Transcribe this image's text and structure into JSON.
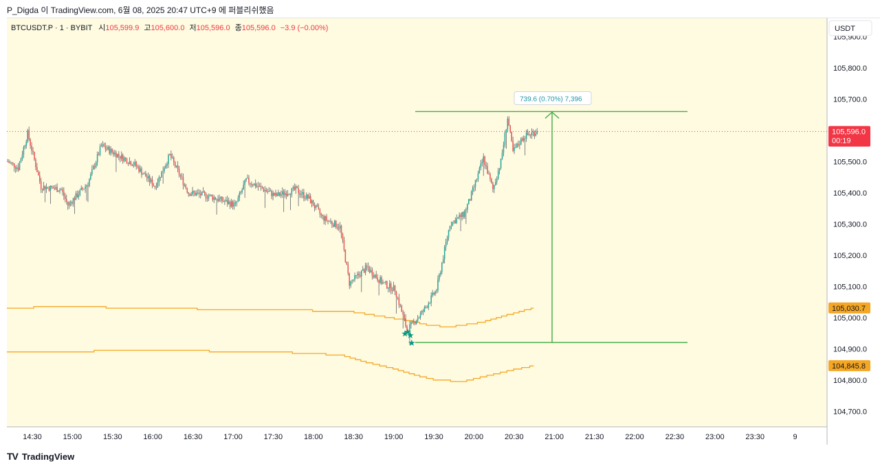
{
  "header": {
    "caption": "P_Digda 이 TradingView.com, 6월 08, 2025 20:47 UTC+9 에 퍼블리쉬했음"
  },
  "legend": {
    "symbol": "BTCUSDT.P · 1 · BYBIT",
    "open_label": "시",
    "open": "105,599.9",
    "high_label": "고",
    "high": "105,600.0",
    "low_label": "저",
    "low": "105,596.0",
    "close_label": "종",
    "close": "105,596.0",
    "change": "−3.9 (−0.00%)"
  },
  "price_axis": {
    "currency": "USDT",
    "last_price": "105,596.0",
    "countdown": "00:19",
    "upper_band_value": "105,030.7",
    "lower_band_value": "104,845.8"
  },
  "measure": {
    "label": "739.6 (0.70%) 7,396"
  },
  "brand": {
    "name": "TradingView",
    "logo": "TV"
  },
  "colors": {
    "background": "#fefbe1",
    "up": "#26a69a",
    "down": "#ef5350",
    "band": "#f5a623",
    "measure": "#4caf50",
    "last_price": "#f23645"
  },
  "chart_data": {
    "type": "candlestick",
    "title": "",
    "symbol": "BTCUSDT.P",
    "interval": "1",
    "exchange": "BYBIT",
    "ylim": [
      104650,
      105960
    ],
    "y_ticks": [
      "105,900.0",
      "105,800.0",
      "105,700.0",
      "105,600.0",
      "105,500.0",
      "105,400.0",
      "105,300.0",
      "105,200.0",
      "105,100.0",
      "105,000.0",
      "104,900.0",
      "104,800.0",
      "104,700.0"
    ],
    "x_ticks": [
      "14:30",
      "15:00",
      "15:30",
      "16:00",
      "16:30",
      "17:00",
      "17:30",
      "18:00",
      "18:30",
      "19:00",
      "19:30",
      "20:00",
      "20:30",
      "21:00",
      "21:30",
      "22:00",
      "22:30",
      "23:00",
      "23:30",
      "9"
    ],
    "last_price": 105596.0,
    "price_anchors": [
      [
        0,
        105500
      ],
      [
        8,
        105480
      ],
      [
        15,
        105590
      ],
      [
        25,
        105420
      ],
      [
        40,
        105410
      ],
      [
        45,
        105360
      ],
      [
        60,
        105430
      ],
      [
        70,
        105550
      ],
      [
        95,
        105490
      ],
      [
        110,
        105420
      ],
      [
        121,
        105520
      ],
      [
        135,
        105400
      ],
      [
        150,
        105390
      ],
      [
        170,
        105360
      ],
      [
        178,
        105440
      ],
      [
        200,
        105390
      ],
      [
        215,
        105410
      ],
      [
        225,
        105380
      ],
      [
        235,
        105320
      ],
      [
        248,
        105290
      ],
      [
        255,
        105110
      ],
      [
        268,
        105160
      ],
      [
        280,
        105110
      ],
      [
        289,
        105090
      ],
      [
        296,
        104990
      ],
      [
        298,
        104960
      ],
      [
        310,
        105020
      ],
      [
        320,
        105090
      ],
      [
        330,
        105300
      ],
      [
        340,
        105330
      ],
      [
        345,
        105380
      ],
      [
        355,
        105510
      ],
      [
        362,
        105410
      ],
      [
        368,
        105500
      ],
      [
        373,
        105640
      ],
      [
        377,
        105530
      ],
      [
        385,
        105580
      ],
      [
        395,
        105596
      ]
    ],
    "upper_band": [
      [
        0,
        105030
      ],
      [
        40,
        105035
      ],
      [
        80,
        105032
      ],
      [
        130,
        105028
      ],
      [
        200,
        105025
      ],
      [
        255,
        105020
      ],
      [
        285,
        105000
      ],
      [
        300,
        104990
      ],
      [
        315,
        104975
      ],
      [
        330,
        104970
      ],
      [
        355,
        104985
      ],
      [
        375,
        105010
      ],
      [
        393,
        105030.7
      ]
    ],
    "lower_band": [
      [
        0,
        104890
      ],
      [
        60,
        104892
      ],
      [
        90,
        104895
      ],
      [
        140,
        104893
      ],
      [
        200,
        104890
      ],
      [
        250,
        104880
      ],
      [
        265,
        104860
      ],
      [
        290,
        104835
      ],
      [
        305,
        104815
      ],
      [
        320,
        104800
      ],
      [
        340,
        104795
      ],
      [
        355,
        104810
      ],
      [
        375,
        104830
      ],
      [
        393,
        104845.8
      ]
    ],
    "marks": [
      {
        "bar": 296,
        "price": 104950,
        "shape": "star"
      },
      {
        "bar": 298,
        "price": 104955,
        "shape": "star"
      },
      {
        "bar": 300,
        "price": 104945,
        "shape": "star"
      },
      {
        "bar": 301,
        "price": 104920,
        "shape": "star"
      }
    ],
    "measure_range": {
      "from": 104920,
      "to": 105660
    },
    "grid": false
  }
}
